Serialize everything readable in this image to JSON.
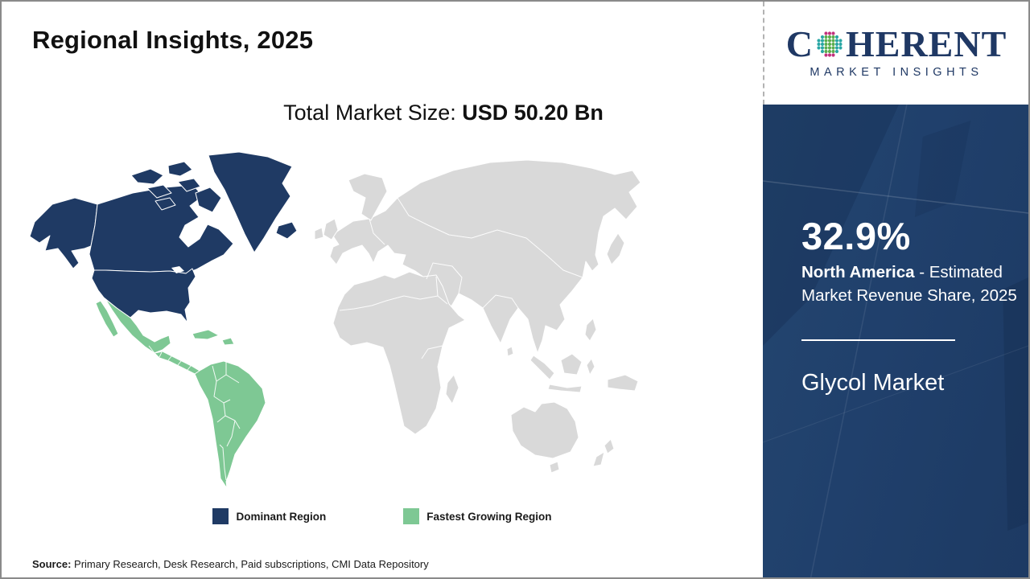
{
  "colors": {
    "dominant": "#1F3A64",
    "fastest": "#7EC894",
    "other": "#D9D9D9",
    "sidebar": "#20406C",
    "logo_navy": "#1F3864"
  },
  "header": {
    "title": "Regional Insights, 2025",
    "subtitle_label": "Total Market Size:",
    "subtitle_value": "USD 50.20 Bn"
  },
  "logo": {
    "line1_pre": "C",
    "line1_post": "HERENT",
    "line2": "MARKET INSIGHTS",
    "globe_colors": {
      "pink": "#C2317E",
      "teal": "#2AA7A5",
      "green": "#5BAE4E"
    }
  },
  "map": {
    "legend": [
      {
        "label": "Dominant Region",
        "color": "#1F3A64"
      },
      {
        "label": "Fastest Growing Region",
        "color": "#7EC894"
      }
    ]
  },
  "sidebar": {
    "share_value": "32.9%",
    "share_region": "North America",
    "share_desc": "- Estimated Market Revenue Share, 2025",
    "market_name": "Glycol Market"
  },
  "footer": {
    "source_label": "Source:",
    "source_text": "Primary Research, Desk Research, Paid subscriptions, CMI Data Repository"
  },
  "chart_data": {
    "type": "choropleth_world_map",
    "title": "Regional Insights, 2025",
    "market": "Glycol Market",
    "total_market_size": "USD 50.20 Bn",
    "year": "2025",
    "regions": [
      {
        "name": "North America",
        "classification": "Dominant Region",
        "estimated_market_revenue_share_2025": "32.9%",
        "color": "#1F3A64"
      },
      {
        "name": "Latin America (Mexico, Central & South America)",
        "classification": "Fastest Growing Region",
        "color": "#7EC894"
      },
      {
        "name": "Rest of World (Europe, Africa, Asia, Oceania)",
        "classification": "Unhighlighted",
        "color": "#D9D9D9"
      }
    ],
    "legend_position": "bottom-center"
  }
}
